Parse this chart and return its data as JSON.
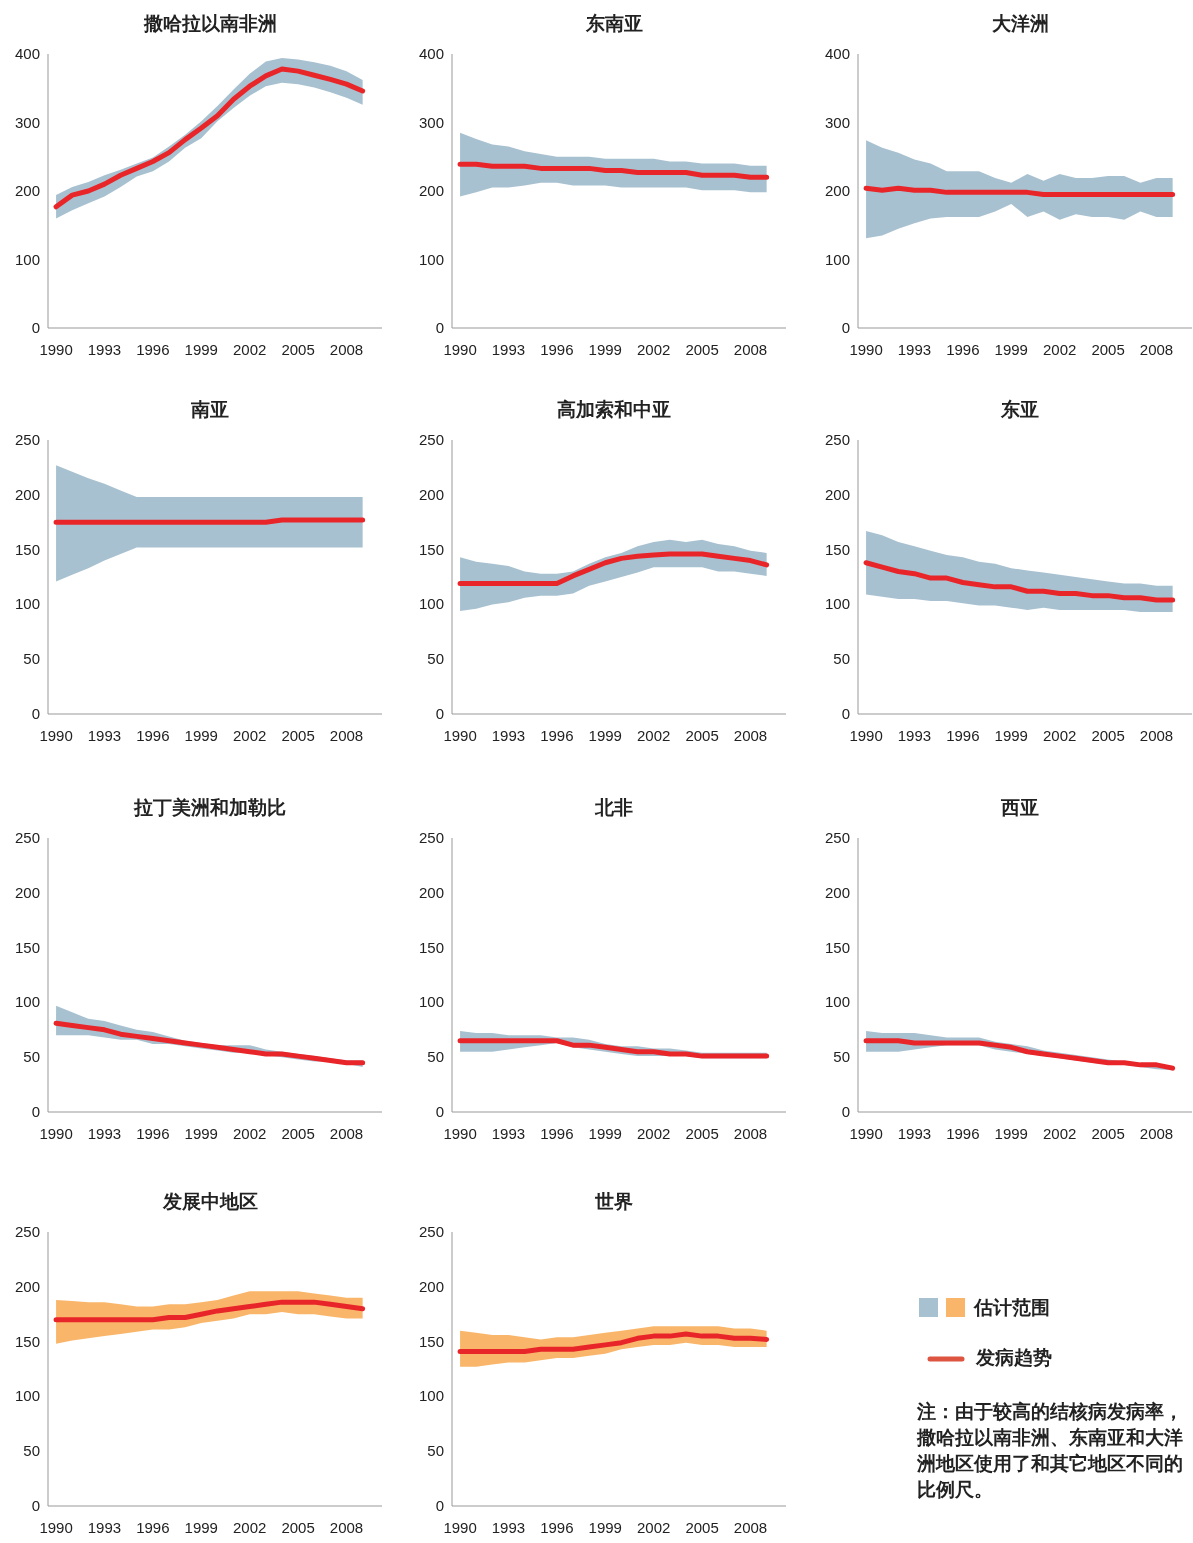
{
  "chart_data": [
    {
      "type": "line",
      "title": "撒哈拉以南非洲",
      "x": [
        1990,
        1991,
        1992,
        1993,
        1994,
        1995,
        1996,
        1997,
        1998,
        1999,
        2000,
        2001,
        2002,
        2003,
        2004,
        2005,
        2006,
        2007,
        2008,
        2009
      ],
      "xlim": [
        1989.5,
        2010.2
      ],
      "xticks": [
        1990,
        1993,
        1996,
        1999,
        2002,
        2005,
        2008
      ],
      "ylim": [
        0,
        400
      ],
      "yticks": [
        0,
        100,
        200,
        300,
        400
      ],
      "series": [
        {
          "color": "#e8262a",
          "values": [
            177,
            194,
            200,
            210,
            223,
            233,
            243,
            256,
            275,
            292,
            310,
            334,
            353,
            368,
            378,
            375,
            369,
            363,
            356,
            346
          ],
          "upper": [
            194,
            206,
            213,
            223,
            231,
            240,
            249,
            265,
            282,
            302,
            324,
            348,
            371,
            389,
            394,
            392,
            388,
            383,
            375,
            362
          ],
          "lower": [
            160,
            172,
            182,
            192,
            206,
            221,
            229,
            243,
            263,
            277,
            302,
            321,
            339,
            353,
            358,
            356,
            351,
            344,
            336,
            326
          ]
        }
      ]
    },
    {
      "type": "line",
      "title": "东南亚",
      "x": [
        1990,
        1991,
        1992,
        1993,
        1994,
        1995,
        1996,
        1997,
        1998,
        1999,
        2000,
        2001,
        2002,
        2003,
        2004,
        2005,
        2006,
        2007,
        2008,
        2009
      ],
      "xlim": [
        1989.5,
        2010.2
      ],
      "xticks": [
        1990,
        1993,
        1996,
        1999,
        2002,
        2005,
        2008
      ],
      "ylim": [
        0,
        400
      ],
      "yticks": [
        0,
        100,
        200,
        300,
        400
      ],
      "series": [
        {
          "color": "#e8262a",
          "values": [
            239,
            239,
            236,
            236,
            236,
            233,
            233,
            233,
            233,
            230,
            230,
            227,
            227,
            227,
            227,
            223,
            223,
            223,
            220,
            220
          ],
          "upper": [
            285,
            276,
            268,
            265,
            258,
            254,
            250,
            250,
            250,
            247,
            247,
            247,
            247,
            243,
            243,
            240,
            240,
            240,
            237,
            237
          ],
          "lower": [
            192,
            198,
            205,
            205,
            208,
            212,
            212,
            208,
            208,
            208,
            205,
            205,
            205,
            205,
            205,
            201,
            201,
            201,
            198,
            198
          ]
        }
      ]
    },
    {
      "type": "line",
      "title": "大洋洲",
      "x": [
        1990,
        1991,
        1992,
        1993,
        1994,
        1995,
        1996,
        1997,
        1998,
        1999,
        2000,
        2001,
        2002,
        2003,
        2004,
        2005,
        2006,
        2007,
        2008,
        2009
      ],
      "xlim": [
        1989.5,
        2010.2
      ],
      "xticks": [
        1990,
        1993,
        1996,
        1999,
        2002,
        2005,
        2008
      ],
      "ylim": [
        0,
        400
      ],
      "yticks": [
        0,
        100,
        200,
        300,
        400
      ],
      "series": [
        {
          "color": "#e8262a",
          "values": [
            204,
            201,
            204,
            201,
            201,
            198,
            198,
            198,
            198,
            198,
            198,
            195,
            195,
            195,
            195,
            195,
            195,
            195,
            195,
            195
          ],
          "upper": [
            274,
            263,
            256,
            246,
            240,
            229,
            229,
            229,
            219,
            212,
            225,
            215,
            225,
            219,
            219,
            222,
            222,
            212,
            219,
            219
          ],
          "lower": [
            131,
            135,
            145,
            153,
            160,
            162,
            162,
            162,
            170,
            181,
            162,
            170,
            158,
            166,
            162,
            162,
            158,
            170,
            162,
            162
          ]
        }
      ]
    },
    {
      "type": "line",
      "title": "南亚",
      "x": [
        1990,
        1991,
        1992,
        1993,
        1994,
        1995,
        1996,
        1997,
        1998,
        1999,
        2000,
        2001,
        2002,
        2003,
        2004,
        2005,
        2006,
        2007,
        2008,
        2009
      ],
      "xlim": [
        1989.5,
        2010.2
      ],
      "xticks": [
        1990,
        1993,
        1996,
        1999,
        2002,
        2005,
        2008
      ],
      "ylim": [
        0,
        250
      ],
      "yticks": [
        0,
        50,
        100,
        150,
        200,
        250
      ],
      "series": [
        {
          "color": "#e8262a",
          "values": [
            175,
            175,
            175,
            175,
            175,
            175,
            175,
            175,
            175,
            175,
            175,
            175,
            175,
            175,
            177,
            177,
            177,
            177,
            177,
            177
          ],
          "upper": [
            227,
            221,
            215,
            210,
            204,
            198,
            198,
            198,
            198,
            198,
            198,
            198,
            198,
            198,
            198,
            198,
            198,
            198,
            198,
            198
          ],
          "lower": [
            121,
            127,
            133,
            140,
            146,
            152,
            152,
            152,
            152,
            152,
            152,
            152,
            152,
            152,
            152,
            152,
            152,
            152,
            152,
            152
          ]
        }
      ]
    },
    {
      "type": "line",
      "title": "高加索和中亚",
      "x": [
        1990,
        1991,
        1992,
        1993,
        1994,
        1995,
        1996,
        1997,
        1998,
        1999,
        2000,
        2001,
        2002,
        2003,
        2004,
        2005,
        2006,
        2007,
        2008,
        2009
      ],
      "xlim": [
        1989.5,
        2010.2
      ],
      "xticks": [
        1990,
        1993,
        1996,
        1999,
        2002,
        2005,
        2008
      ],
      "ylim": [
        0,
        250
      ],
      "yticks": [
        0,
        50,
        100,
        150,
        200,
        250
      ],
      "series": [
        {
          "color": "#e8262a",
          "values": [
            119,
            119,
            119,
            119,
            119,
            119,
            119,
            126,
            132,
            138,
            142,
            144,
            145,
            146,
            146,
            146,
            144,
            142,
            140,
            136
          ],
          "upper": [
            143,
            139,
            137,
            135,
            130,
            128,
            128,
            130,
            137,
            143,
            147,
            153,
            157,
            159,
            157,
            159,
            155,
            153,
            149,
            147
          ],
          "lower": [
            94,
            96,
            100,
            102,
            106,
            108,
            108,
            110,
            117,
            121,
            125,
            129,
            134,
            134,
            134,
            134,
            130,
            130,
            128,
            126
          ]
        }
      ]
    },
    {
      "type": "line",
      "title": "东亚",
      "x": [
        1990,
        1991,
        1992,
        1993,
        1994,
        1995,
        1996,
        1997,
        1998,
        1999,
        2000,
        2001,
        2002,
        2003,
        2004,
        2005,
        2006,
        2007,
        2008,
        2009
      ],
      "xlim": [
        1989.5,
        2010.2
      ],
      "xticks": [
        1990,
        1993,
        1996,
        1999,
        2002,
        2005,
        2008
      ],
      "ylim": [
        0,
        250
      ],
      "yticks": [
        0,
        50,
        100,
        150,
        200,
        250
      ],
      "series": [
        {
          "color": "#e8262a",
          "values": [
            138,
            134,
            130,
            128,
            124,
            124,
            120,
            118,
            116,
            116,
            112,
            112,
            110,
            110,
            108,
            108,
            106,
            106,
            104,
            104
          ],
          "upper": [
            167,
            163,
            157,
            153,
            149,
            145,
            143,
            139,
            137,
            133,
            131,
            129,
            127,
            125,
            123,
            121,
            119,
            119,
            117,
            117
          ],
          "lower": [
            109,
            107,
            105,
            105,
            103,
            103,
            101,
            99,
            99,
            97,
            95,
            97,
            95,
            95,
            95,
            95,
            95,
            93,
            93,
            93
          ]
        }
      ]
    },
    {
      "type": "line",
      "title": "拉丁美洲和加勒比",
      "x": [
        1990,
        1991,
        1992,
        1993,
        1994,
        1995,
        1996,
        1997,
        1998,
        1999,
        2000,
        2001,
        2002,
        2003,
        2004,
        2005,
        2006,
        2007,
        2008,
        2009
      ],
      "xlim": [
        1989.5,
        2010.2
      ],
      "xticks": [
        1990,
        1993,
        1996,
        1999,
        2002,
        2005,
        2008
      ],
      "ylim": [
        0,
        250
      ],
      "yticks": [
        0,
        50,
        100,
        150,
        200,
        250
      ],
      "series": [
        {
          "color": "#e8262a",
          "values": [
            81,
            79,
            77,
            75,
            71,
            69,
            67,
            65,
            63,
            61,
            59,
            57,
            55,
            53,
            53,
            51,
            49,
            47,
            45,
            45
          ],
          "upper": [
            97,
            91,
            85,
            83,
            79,
            75,
            73,
            69,
            65,
            63,
            61,
            61,
            61,
            57,
            55,
            53,
            51,
            49,
            47,
            47
          ],
          "lower": [
            70,
            70,
            70,
            68,
            66,
            66,
            62,
            62,
            60,
            58,
            56,
            54,
            54,
            52,
            50,
            48,
            46,
            46,
            44,
            41
          ]
        }
      ]
    },
    {
      "type": "line",
      "title": "北非",
      "x": [
        1990,
        1991,
        1992,
        1993,
        1994,
        1995,
        1996,
        1997,
        1998,
        1999,
        2000,
        2001,
        2002,
        2003,
        2004,
        2005,
        2006,
        2007,
        2008,
        2009
      ],
      "xlim": [
        1989.5,
        2010.2
      ],
      "xticks": [
        1990,
        1993,
        1996,
        1999,
        2002,
        2005,
        2008
      ],
      "ylim": [
        0,
        250
      ],
      "yticks": [
        0,
        50,
        100,
        150,
        200,
        250
      ],
      "series": [
        {
          "color": "#e8262a",
          "values": [
            65,
            65,
            65,
            65,
            65,
            65,
            65,
            61,
            61,
            59,
            57,
            55,
            55,
            53,
            53,
            51,
            51,
            51,
            51,
            51
          ],
          "upper": [
            74,
            72,
            72,
            70,
            70,
            70,
            68,
            68,
            66,
            62,
            60,
            60,
            58,
            58,
            56,
            54,
            54,
            54,
            54,
            54
          ],
          "lower": [
            55,
            55,
            55,
            57,
            59,
            61,
            63,
            59,
            57,
            55,
            53,
            51,
            51,
            51,
            51,
            49,
            49,
            49,
            49,
            49
          ]
        }
      ]
    },
    {
      "type": "line",
      "title": "西亚",
      "x": [
        1990,
        1991,
        1992,
        1993,
        1994,
        1995,
        1996,
        1997,
        1998,
        1999,
        2000,
        2001,
        2002,
        2003,
        2004,
        2005,
        2006,
        2007,
        2008,
        2009
      ],
      "xlim": [
        1989.5,
        2010.2
      ],
      "xticks": [
        1990,
        1993,
        1996,
        1999,
        2002,
        2005,
        2008
      ],
      "ylim": [
        0,
        250
      ],
      "yticks": [
        0,
        50,
        100,
        150,
        200,
        250
      ],
      "series": [
        {
          "color": "#e8262a",
          "values": [
            65,
            65,
            65,
            63,
            63,
            63,
            63,
            63,
            61,
            59,
            55,
            53,
            51,
            49,
            47,
            45,
            45,
            43,
            43,
            40
          ],
          "upper": [
            74,
            72,
            72,
            72,
            70,
            68,
            68,
            68,
            64,
            62,
            60,
            56,
            54,
            52,
            50,
            48,
            46,
            44,
            44,
            42
          ],
          "lower": [
            55,
            55,
            55,
            57,
            59,
            61,
            61,
            61,
            57,
            55,
            53,
            51,
            49,
            47,
            45,
            43,
            43,
            41,
            39,
            38
          ]
        }
      ]
    },
    {
      "type": "line",
      "title": "发展中地区",
      "x": [
        1990,
        1991,
        1992,
        1993,
        1994,
        1995,
        1996,
        1997,
        1998,
        1999,
        2000,
        2001,
        2002,
        2003,
        2004,
        2005,
        2006,
        2007,
        2008,
        2009
      ],
      "xlim": [
        1989.5,
        2010.2
      ],
      "xticks": [
        1990,
        1993,
        1996,
        1999,
        2002,
        2005,
        2008
      ],
      "ylim": [
        0,
        250
      ],
      "yticks": [
        0,
        50,
        100,
        150,
        200,
        250
      ],
      "series": [
        {
          "color": "#e8262a",
          "values": [
            170,
            170,
            170,
            170,
            170,
            170,
            170,
            172,
            172,
            175,
            178,
            180,
            182,
            184,
            186,
            186,
            186,
            184,
            182,
            180
          ],
          "upper": [
            188,
            187,
            186,
            186,
            184,
            182,
            182,
            184,
            184,
            186,
            188,
            192,
            196,
            196,
            196,
            196,
            194,
            192,
            190,
            190
          ],
          "lower": [
            148,
            151,
            153,
            155,
            157,
            159,
            161,
            161,
            163,
            167,
            169,
            171,
            175,
            175,
            177,
            175,
            175,
            173,
            171,
            171
          ]
        }
      ]
    },
    {
      "type": "line",
      "title": "世界",
      "x": [
        1990,
        1991,
        1992,
        1993,
        1994,
        1995,
        1996,
        1997,
        1998,
        1999,
        2000,
        2001,
        2002,
        2003,
        2004,
        2005,
        2006,
        2007,
        2008,
        2009
      ],
      "xlim": [
        1989.5,
        2010.2
      ],
      "xticks": [
        1990,
        1993,
        1996,
        1999,
        2002,
        2005,
        2008
      ],
      "ylim": [
        0,
        250
      ],
      "yticks": [
        0,
        50,
        100,
        150,
        200,
        250
      ],
      "series": [
        {
          "color": "#e8262a",
          "values": [
            141,
            141,
            141,
            141,
            141,
            143,
            143,
            143,
            145,
            147,
            149,
            153,
            155,
            155,
            157,
            155,
            155,
            153,
            153,
            152
          ],
          "upper": [
            160,
            158,
            156,
            156,
            154,
            152,
            154,
            154,
            156,
            158,
            160,
            162,
            164,
            164,
            164,
            164,
            164,
            162,
            162,
            160
          ],
          "lower": [
            127,
            127,
            129,
            131,
            131,
            133,
            135,
            135,
            137,
            139,
            143,
            145,
            147,
            147,
            149,
            147,
            147,
            145,
            145,
            145
          ]
        }
      ]
    },
    {
      "type": "other",
      "annotations": [
        "估计范围",
        "发病趋势",
        "注：由于较高的结核病发病率，撒哈拉以南非洲、东南亚和大洋洲地区使用了和其它地区不同的比例尺。"
      ]
    }
  ]
}
